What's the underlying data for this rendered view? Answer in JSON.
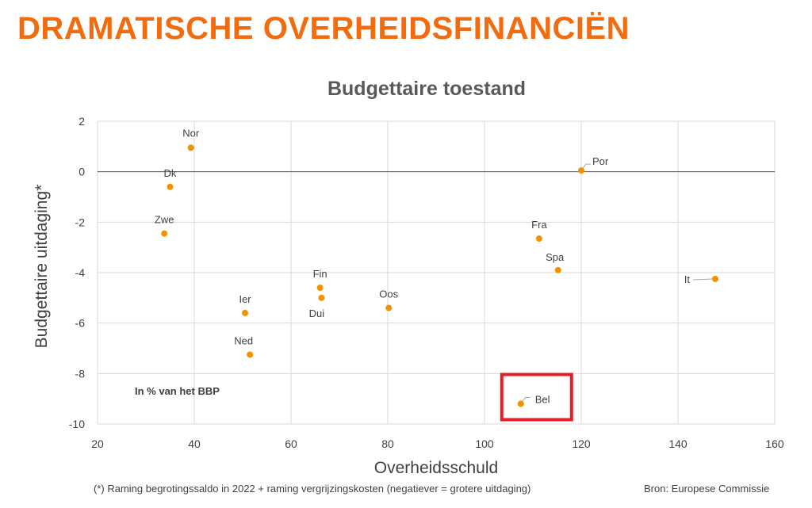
{
  "slide": {
    "title": "DRAMATISCHE OVERHEIDSFINANCIËN",
    "footnote": "(*) Raming begrotingssaldo in 2022 + raming vergrijzingskosten (negatiever = grotere uitdaging)",
    "source": "Bron: Europese Commissie"
  },
  "chart_data": {
    "type": "scatter",
    "title": "Budgettaire toestand",
    "xlabel": "Overheidsschuld",
    "ylabel": "Budgettaire uitdaging*",
    "xlim": [
      20,
      160
    ],
    "ylim": [
      -10,
      2
    ],
    "xticks": [
      20,
      40,
      60,
      80,
      100,
      120,
      140,
      160
    ],
    "yticks": [
      2,
      0,
      -2,
      -4,
      -6,
      -8,
      -10
    ],
    "grid": true,
    "annotation": "In % van het BBP",
    "highlight": "Bel",
    "colors": {
      "point": "#F39200",
      "highlight_box": "#E41E26",
      "grid": "#D9D9D9",
      "axis": "#595959"
    },
    "points": [
      {
        "label": "Nor",
        "x": 39.3,
        "y": 0.95
      },
      {
        "label": "Dk",
        "x": 35.0,
        "y": -0.6
      },
      {
        "label": "Zwe",
        "x": 33.8,
        "y": -2.45
      },
      {
        "label": "Ier",
        "x": 50.5,
        "y": -5.6
      },
      {
        "label": "Ned",
        "x": 51.5,
        "y": -7.25
      },
      {
        "label": "Fin",
        "x": 66.0,
        "y": -4.6
      },
      {
        "label": "Dui",
        "x": 66.3,
        "y": -5.0
      },
      {
        "label": "Oos",
        "x": 80.2,
        "y": -5.4
      },
      {
        "label": "Fra",
        "x": 111.3,
        "y": -2.65
      },
      {
        "label": "Spa",
        "x": 115.2,
        "y": -3.9
      },
      {
        "label": "Por",
        "x": 120.0,
        "y": 0.05
      },
      {
        "label": "It",
        "x": 147.7,
        "y": -4.25
      },
      {
        "label": "Bel",
        "x": 107.5,
        "y": -9.2
      }
    ]
  }
}
